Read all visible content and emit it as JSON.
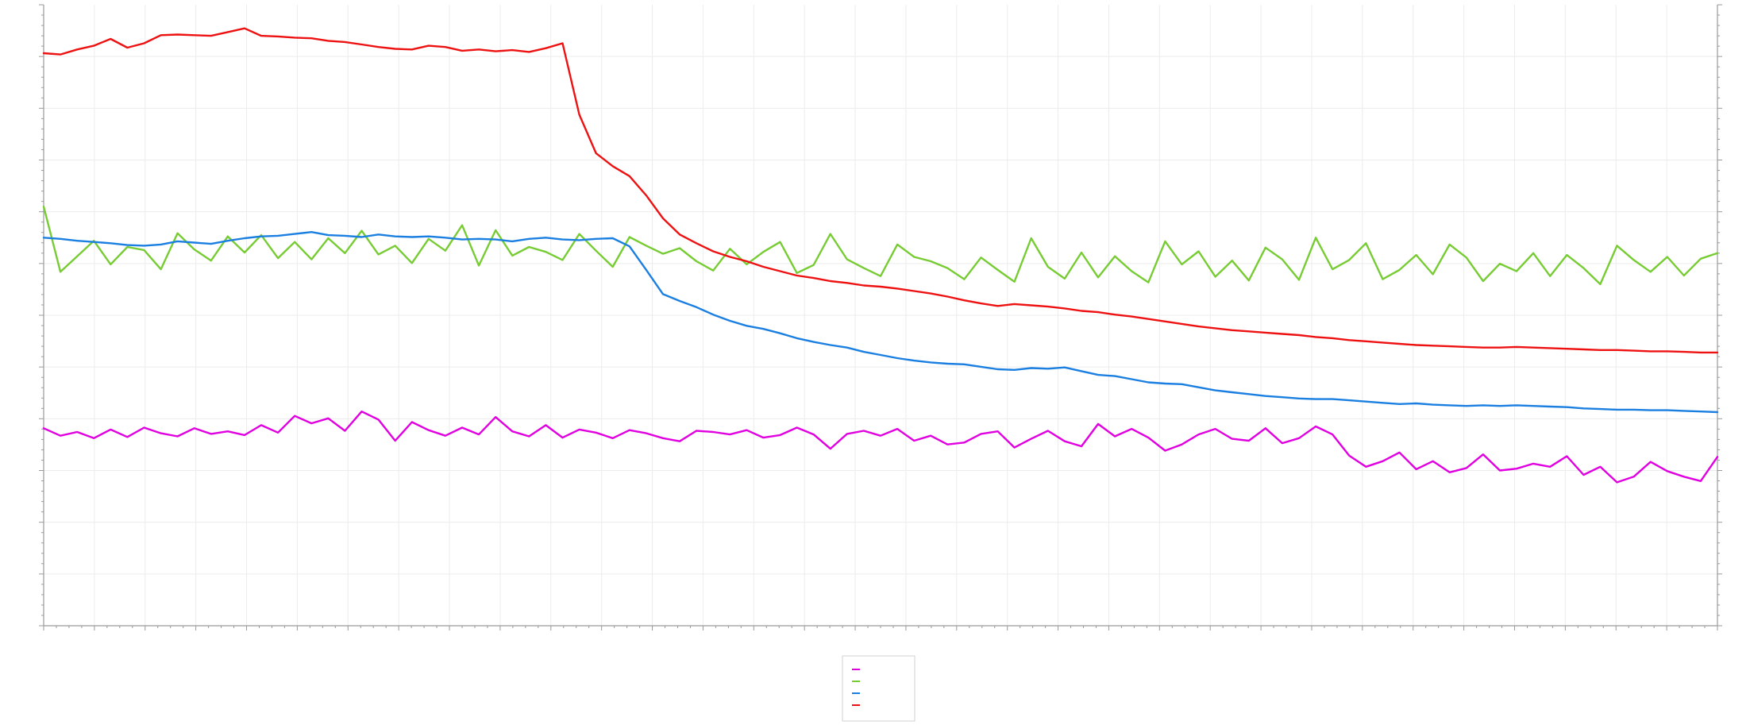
{
  "chart_data": {
    "type": "line",
    "title": "",
    "xlabel": "",
    "ylabel": "",
    "ylim": [
      0,
      100
    ],
    "xlim": [
      0,
      1
    ],
    "grid": true,
    "legend_position": "bottom-center",
    "series": [
      {
        "color": "#e000e0",
        "x": [
          0,
          0.01,
          0.02,
          0.03,
          0.04,
          0.05,
          0.06,
          0.07,
          0.08,
          0.09,
          0.1,
          0.11,
          0.12,
          0.13,
          0.14,
          0.15,
          0.16,
          0.17,
          0.18,
          0.19,
          0.2,
          0.21,
          0.22,
          0.23,
          0.24,
          0.25,
          0.26,
          0.27,
          0.28,
          0.29,
          0.3,
          0.31,
          0.32,
          0.33,
          0.34,
          0.35,
          0.36,
          0.37,
          0.38,
          0.39,
          0.4,
          0.41,
          0.42,
          0.43,
          0.44,
          0.45,
          0.46,
          0.47,
          0.48,
          0.49,
          0.5,
          0.51,
          0.52,
          0.53,
          0.54,
          0.55,
          0.56,
          0.57,
          0.58,
          0.59,
          0.6,
          0.61,
          0.62,
          0.63,
          0.64,
          0.65,
          0.66,
          0.67,
          0.68,
          0.69,
          0.7,
          0.71,
          0.72,
          0.73,
          0.74,
          0.75,
          0.76,
          0.77,
          0.78,
          0.79,
          0.8,
          0.81,
          0.82,
          0.83,
          0.84,
          0.85,
          0.86,
          0.87,
          0.88,
          0.89,
          0.9,
          0.91,
          0.92,
          0.93,
          0.94,
          0.95,
          0.96,
          0.97,
          0.98,
          0.99,
          1.0
        ],
        "values": [
          31.8,
          30.6,
          31.2,
          30.2,
          31.6,
          30.4,
          31.9,
          31.0,
          30.5,
          31.8,
          30.9,
          31.3,
          30.7,
          32.3,
          31.1,
          33.8,
          32.6,
          33.4,
          31.4,
          34.5,
          33.2,
          29.8,
          32.8,
          31.5,
          30.6,
          31.9,
          30.8,
          33.6,
          31.3,
          30.5,
          32.3,
          30.3,
          31.6,
          31.1,
          30.2,
          31.5,
          31.0,
          30.2,
          29.7,
          31.4,
          31.2,
          30.8,
          31.5,
          30.3,
          30.7,
          31.9,
          30.8,
          28.5,
          30.9,
          31.4,
          30.6,
          31.7,
          29.8,
          30.6,
          29.2,
          29.5,
          30.9,
          31.3,
          28.7,
          30.1,
          31.4,
          29.7,
          28.9,
          32.5,
          30.5,
          31.7,
          30.3,
          28.2,
          29.2,
          30.8,
          31.7,
          30.1,
          29.8,
          31.8,
          29.4,
          30.2,
          32.1,
          30.8,
          27.4,
          25.6,
          26.5,
          27.9,
          25.2,
          26.5,
          24.7,
          25.4,
          27.6,
          25.0,
          25.3,
          26.1,
          25.6,
          27.3,
          24.3,
          25.6,
          23.1,
          24.0,
          26.4,
          24.9,
          24.0,
          23.3,
          27.2
        ]
      },
      {
        "color": "#77cc33",
        "x": [
          0,
          0.01,
          0.02,
          0.03,
          0.04,
          0.05,
          0.06,
          0.07,
          0.08,
          0.09,
          0.1,
          0.11,
          0.12,
          0.13,
          0.14,
          0.15,
          0.16,
          0.17,
          0.18,
          0.19,
          0.2,
          0.21,
          0.22,
          0.23,
          0.24,
          0.25,
          0.26,
          0.27,
          0.28,
          0.29,
          0.3,
          0.31,
          0.32,
          0.33,
          0.34,
          0.35,
          0.36,
          0.37,
          0.38,
          0.39,
          0.4,
          0.41,
          0.42,
          0.43,
          0.44,
          0.45,
          0.46,
          0.47,
          0.48,
          0.49,
          0.5,
          0.51,
          0.52,
          0.53,
          0.54,
          0.55,
          0.56,
          0.57,
          0.58,
          0.59,
          0.6,
          0.61,
          0.62,
          0.63,
          0.64,
          0.65,
          0.66,
          0.67,
          0.68,
          0.69,
          0.7,
          0.71,
          0.72,
          0.73,
          0.74,
          0.75,
          0.76,
          0.77,
          0.78,
          0.79,
          0.8,
          0.81,
          0.82,
          0.83,
          0.84,
          0.85,
          0.86,
          0.87,
          0.88,
          0.89,
          0.9,
          0.91,
          0.92,
          0.93,
          0.94,
          0.95,
          0.96,
          0.97,
          0.98,
          0.99,
          1.0
        ],
        "values": [
          67.5,
          57.0,
          59.5,
          62.0,
          58.2,
          61.0,
          60.5,
          57.4,
          63.2,
          60.6,
          58.8,
          62.7,
          60.1,
          62.9,
          59.2,
          61.8,
          59.0,
          62.4,
          60.0,
          63.6,
          59.8,
          61.2,
          58.4,
          62.3,
          60.4,
          64.5,
          58.0,
          63.7,
          59.6,
          61.0,
          60.2,
          58.9,
          63.1,
          60.4,
          57.8,
          62.6,
          61.2,
          59.9,
          60.8,
          58.7,
          57.2,
          60.7,
          58.2,
          60.2,
          61.8,
          56.8,
          58.1,
          63.1,
          59.0,
          57.6,
          56.3,
          61.4,
          59.4,
          58.7,
          57.6,
          55.8,
          59.3,
          57.3,
          55.4,
          62.4,
          57.8,
          55.9,
          60.1,
          56.1,
          59.5,
          57.1,
          55.3,
          61.9,
          58.2,
          60.3,
          56.2,
          58.8,
          55.6,
          60.9,
          59.0,
          55.7,
          62.5,
          57.4,
          58.9,
          61.6,
          55.8,
          57.3,
          59.7,
          56.6,
          61.4,
          59.3,
          55.5,
          58.3,
          57.1,
          60.0,
          56.3,
          59.7,
          57.6,
          55.0,
          61.2,
          58.9,
          57.0,
          59.4,
          56.4,
          59.1,
          60.0
        ]
      },
      {
        "color": "#1a7fe0",
        "x": [
          0,
          0.01,
          0.02,
          0.03,
          0.04,
          0.05,
          0.06,
          0.07,
          0.08,
          0.09,
          0.1,
          0.11,
          0.12,
          0.13,
          0.14,
          0.15,
          0.16,
          0.17,
          0.18,
          0.19,
          0.2,
          0.21,
          0.22,
          0.23,
          0.24,
          0.25,
          0.26,
          0.27,
          0.28,
          0.29,
          0.3,
          0.31,
          0.32,
          0.33,
          0.34,
          0.35,
          0.36,
          0.37,
          0.38,
          0.39,
          0.4,
          0.41,
          0.42,
          0.43,
          0.44,
          0.45,
          0.46,
          0.47,
          0.48,
          0.49,
          0.5,
          0.51,
          0.52,
          0.53,
          0.54,
          0.55,
          0.56,
          0.57,
          0.58,
          0.59,
          0.6,
          0.61,
          0.62,
          0.63,
          0.64,
          0.65,
          0.66,
          0.67,
          0.68,
          0.69,
          0.7,
          0.71,
          0.72,
          0.73,
          0.74,
          0.75,
          0.76,
          0.77,
          0.78,
          0.79,
          0.8,
          0.81,
          0.82,
          0.83,
          0.84,
          0.85,
          0.86,
          0.87,
          0.88,
          0.89,
          0.9,
          0.91,
          0.92,
          0.93,
          0.94,
          0.95,
          0.96,
          0.97,
          0.98,
          0.99,
          1.0
        ],
        "values": [
          62.5,
          62.3,
          62.0,
          61.8,
          61.6,
          61.3,
          61.2,
          61.4,
          61.9,
          61.7,
          61.5,
          62.0,
          62.4,
          62.7,
          62.8,
          63.1,
          63.4,
          62.9,
          62.8,
          62.6,
          63.0,
          62.7,
          62.6,
          62.7,
          62.5,
          62.2,
          62.3,
          62.2,
          61.9,
          62.3,
          62.5,
          62.2,
          62.1,
          62.3,
          62.4,
          61.1,
          57.3,
          53.4,
          52.3,
          51.3,
          50.1,
          49.1,
          48.3,
          47.8,
          47.1,
          46.3,
          45.7,
          45.2,
          44.8,
          44.1,
          43.6,
          43.1,
          42.7,
          42.4,
          42.2,
          42.1,
          41.7,
          41.3,
          41.2,
          41.5,
          41.4,
          41.6,
          41.0,
          40.4,
          40.2,
          39.7,
          39.2,
          39.0,
          38.9,
          38.4,
          37.9,
          37.6,
          37.3,
          37.0,
          36.8,
          36.6,
          36.5,
          36.5,
          36.3,
          36.1,
          35.9,
          35.7,
          35.8,
          35.6,
          35.5,
          35.4,
          35.5,
          35.4,
          35.5,
          35.4,
          35.3,
          35.2,
          35.0,
          34.9,
          34.8,
          34.8,
          34.7,
          34.7,
          34.6,
          34.5,
          34.4
        ]
      },
      {
        "color": "#ee1111",
        "x": [
          0,
          0.01,
          0.02,
          0.03,
          0.04,
          0.05,
          0.06,
          0.07,
          0.08,
          0.09,
          0.1,
          0.11,
          0.12,
          0.13,
          0.14,
          0.15,
          0.16,
          0.17,
          0.18,
          0.19,
          0.2,
          0.21,
          0.22,
          0.23,
          0.24,
          0.25,
          0.26,
          0.27,
          0.28,
          0.29,
          0.3,
          0.31,
          0.32,
          0.33,
          0.34,
          0.35,
          0.36,
          0.37,
          0.38,
          0.39,
          0.4,
          0.41,
          0.42,
          0.43,
          0.44,
          0.45,
          0.46,
          0.47,
          0.48,
          0.49,
          0.5,
          0.51,
          0.52,
          0.53,
          0.54,
          0.55,
          0.56,
          0.57,
          0.58,
          0.59,
          0.6,
          0.61,
          0.62,
          0.63,
          0.64,
          0.65,
          0.66,
          0.67,
          0.68,
          0.69,
          0.7,
          0.71,
          0.72,
          0.73,
          0.74,
          0.75,
          0.76,
          0.77,
          0.78,
          0.79,
          0.8,
          0.81,
          0.82,
          0.83,
          0.84,
          0.85,
          0.86,
          0.87,
          0.88,
          0.89,
          0.9,
          0.91,
          0.92,
          0.93,
          0.94,
          0.95,
          0.96,
          0.97,
          0.98,
          0.99,
          1.0
        ],
        "values": [
          92.2,
          92.0,
          92.8,
          93.4,
          94.5,
          93.1,
          93.8,
          95.1,
          95.2,
          95.1,
          95.0,
          95.6,
          96.2,
          95.0,
          94.9,
          94.7,
          94.6,
          94.2,
          94.0,
          93.6,
          93.2,
          92.9,
          92.8,
          93.4,
          93.2,
          92.6,
          92.8,
          92.5,
          92.7,
          92.4,
          93.0,
          93.8,
          82.3,
          76.1,
          74.0,
          72.4,
          69.3,
          65.6,
          63.0,
          61.6,
          60.3,
          59.4,
          58.7,
          57.8,
          57.1,
          56.4,
          56.0,
          55.5,
          55.2,
          54.8,
          54.6,
          54.3,
          53.9,
          53.5,
          53.0,
          52.4,
          51.9,
          51.5,
          51.8,
          51.6,
          51.4,
          51.1,
          50.7,
          50.5,
          50.1,
          49.8,
          49.4,
          49.0,
          48.6,
          48.2,
          47.9,
          47.6,
          47.4,
          47.2,
          47.0,
          46.8,
          46.5,
          46.3,
          46.0,
          45.8,
          45.6,
          45.4,
          45.2,
          45.1,
          45.0,
          44.9,
          44.8,
          44.8,
          44.9,
          44.8,
          44.7,
          44.6,
          44.5,
          44.4,
          44.4,
          44.3,
          44.2,
          44.2,
          44.1,
          44.0,
          44.0
        ]
      }
    ]
  }
}
